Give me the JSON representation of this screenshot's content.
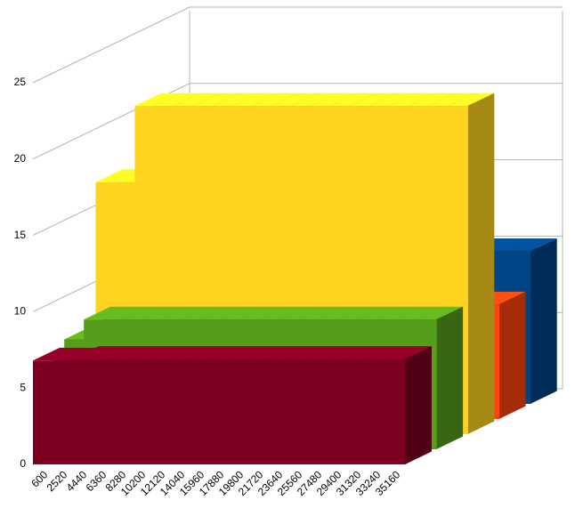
{
  "chart_data": {
    "type": "bar3d",
    "categories": [
      "600",
      "2520",
      "4440",
      "6360",
      "8280",
      "10200",
      "12120",
      "14040",
      "15960",
      "17880",
      "19800",
      "21720",
      "23640",
      "25560",
      "27480",
      "29400",
      "31320",
      "33240",
      "35160"
    ],
    "series": [
      {
        "color": "#7e0021",
        "values": [
          6.8,
          6.8,
          6.9,
          6.9,
          6.9,
          6.9,
          6.9,
          6.9,
          6.9,
          6.9,
          6.9,
          6.9,
          6.9,
          6.9,
          6.9,
          6.9,
          6.9,
          6.9,
          6.9
        ]
      },
      {
        "color": "#579d1c",
        "values": [
          7.2,
          8.5,
          8.5,
          8.5,
          8.5,
          8.5,
          8.5,
          8.5,
          8.5,
          8.5,
          8.5,
          8.5,
          8.5,
          8.5,
          8.5,
          8.5,
          8.5,
          8.5,
          8.5
        ]
      },
      {
        "color": "#ffd320",
        "values": [
          16.5,
          16.5,
          21.5,
          21.5,
          21.5,
          21.5,
          21.5,
          21.5,
          21.5,
          21.5,
          21.5,
          21.5,
          21.5,
          21.5,
          21.5,
          21.5,
          21.5,
          21.5,
          21.5
        ]
      },
      {
        "color": "#ff420e",
        "values": [
          7.5,
          7.5,
          7.5,
          7.5,
          7.5,
          7.5,
          7.5,
          7.5,
          7.5,
          7.5,
          7.5,
          7.5,
          7.5,
          7.5,
          7.5,
          7.5,
          7.5,
          7.5,
          7.5
        ]
      },
      {
        "color": "#004586",
        "values": [
          10,
          10,
          10,
          10,
          10,
          10,
          10,
          10,
          10,
          10,
          10,
          10,
          10,
          10,
          10,
          10,
          10,
          10,
          10
        ]
      }
    ],
    "ylim": [
      0,
      25
    ],
    "yticks": [
      0,
      5,
      10,
      15,
      20,
      25
    ],
    "grid": true
  }
}
